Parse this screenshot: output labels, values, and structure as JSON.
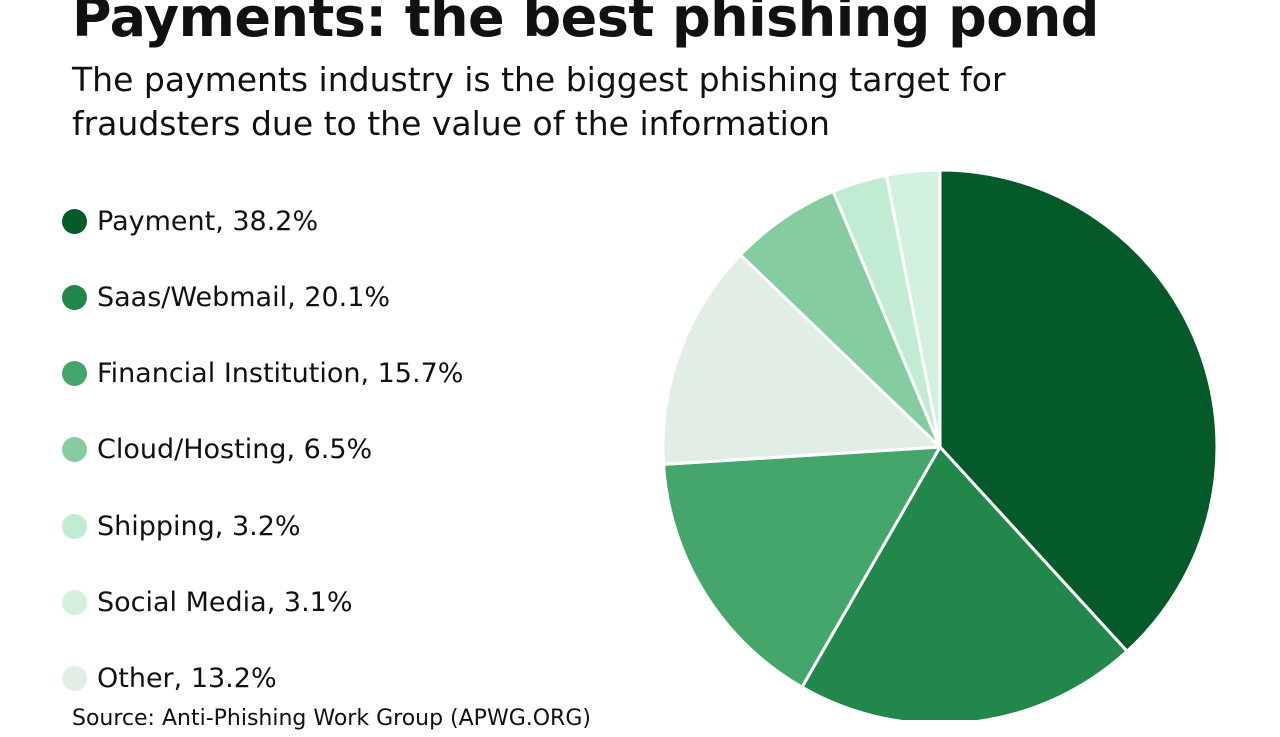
{
  "chart_data": {
    "type": "pie",
    "title": "Payments: the best phishing pond",
    "subtitle": "The payments industry is the biggest phishing target for fraudsters due to the value of the information",
    "source": "Source: Anti-Phishing Work Group (APWG.ORG)",
    "legend_position": "left",
    "slices": [
      {
        "label": "Payment, 38.2%",
        "name": "Payment",
        "value": 38.2,
        "color": "#055a2a"
      },
      {
        "label": "Saas/Webmail, 20.1%",
        "name": "Saas/Webmail",
        "value": 20.1,
        "color": "#21874a"
      },
      {
        "label": "Financial Institution, 15.7%",
        "name": "Financial Institution",
        "value": 15.7,
        "color": "#45a66b"
      },
      {
        "label": "Cloud/Hosting, 6.5%",
        "name": "Cloud/Hosting",
        "value": 6.5,
        "color": "#85cda0"
      },
      {
        "label": "Shipping, 3.2%",
        "name": "Shipping",
        "value": 3.2,
        "color": "#c1ecd2"
      },
      {
        "label": "Social Media, 3.1%",
        "name": "Social Media",
        "value": 3.1,
        "color": "#d2f0de"
      },
      {
        "label": "Other, 13.2%",
        "name": "Other",
        "value": 13.2,
        "color": "#e1eee5"
      }
    ],
    "slice_order_clockwise_from_top": [
      "Payment",
      "Saas/Webmail",
      "Financial Institution",
      "Other",
      "Cloud/Hosting",
      "Shipping",
      "Social Media"
    ]
  }
}
